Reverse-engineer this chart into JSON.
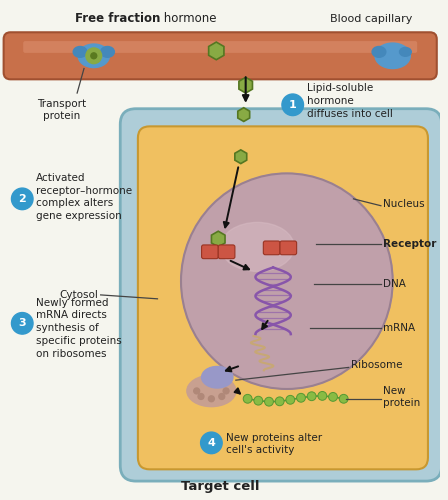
{
  "title": "Target cell",
  "free_fraction_bold": "Free fraction",
  "free_fraction_rest": " hormone",
  "blood_capillary": "Blood capillary",
  "transport_protein": "Transport\nprotein",
  "step2_text": "Activated\nreceptor–hormone\ncomplex alters\ngene expression",
  "cytosol": "Cytosol",
  "step3_text": "Newly formed\nmRNA directs\nsynthesis of\nspecific proteins\non ribosomes",
  "step1_text": "Lipid-soluble\nhormone\ndiffuses into cell",
  "step4_text": "New proteins alter\ncell's activity",
  "nucleus_lbl": "Nucleus",
  "receptor_lbl": "Receptor",
  "dna_lbl": "DNA",
  "mrna_lbl": "mRNA",
  "ribosome_lbl": "Ribosome",
  "new_protein_lbl": "New\nprotein",
  "colors": {
    "background": "#f5f5ee",
    "capillary_fill": "#c8704a",
    "capillary_edge": "#a05030",
    "cell_outer_fill": "#aecdd8",
    "cell_outer_edge": "#7aaebb",
    "cell_inner_fill": "#f0c060",
    "cell_inner_edge": "#c89830",
    "nucleus_fill": "#c0a0aa",
    "nucleus_edge": "#9a8090",
    "hormone_green": "#88aa44",
    "hormone_edge": "#557722",
    "receptor_red": "#cc5544",
    "receptor_edge": "#993322",
    "dna_purple": "#8855aa",
    "mrna_color": "#c8a870",
    "ribosome_pink": "#d4a090",
    "ribosome_blue": "#9090c0",
    "new_protein_green": "#88bb44",
    "step_circle_blue": "#3399cc",
    "arrow_color": "#111111",
    "text_color": "#222222",
    "line_color": "#444444"
  },
  "figsize": [
    4.48,
    5.0
  ],
  "dpi": 100
}
